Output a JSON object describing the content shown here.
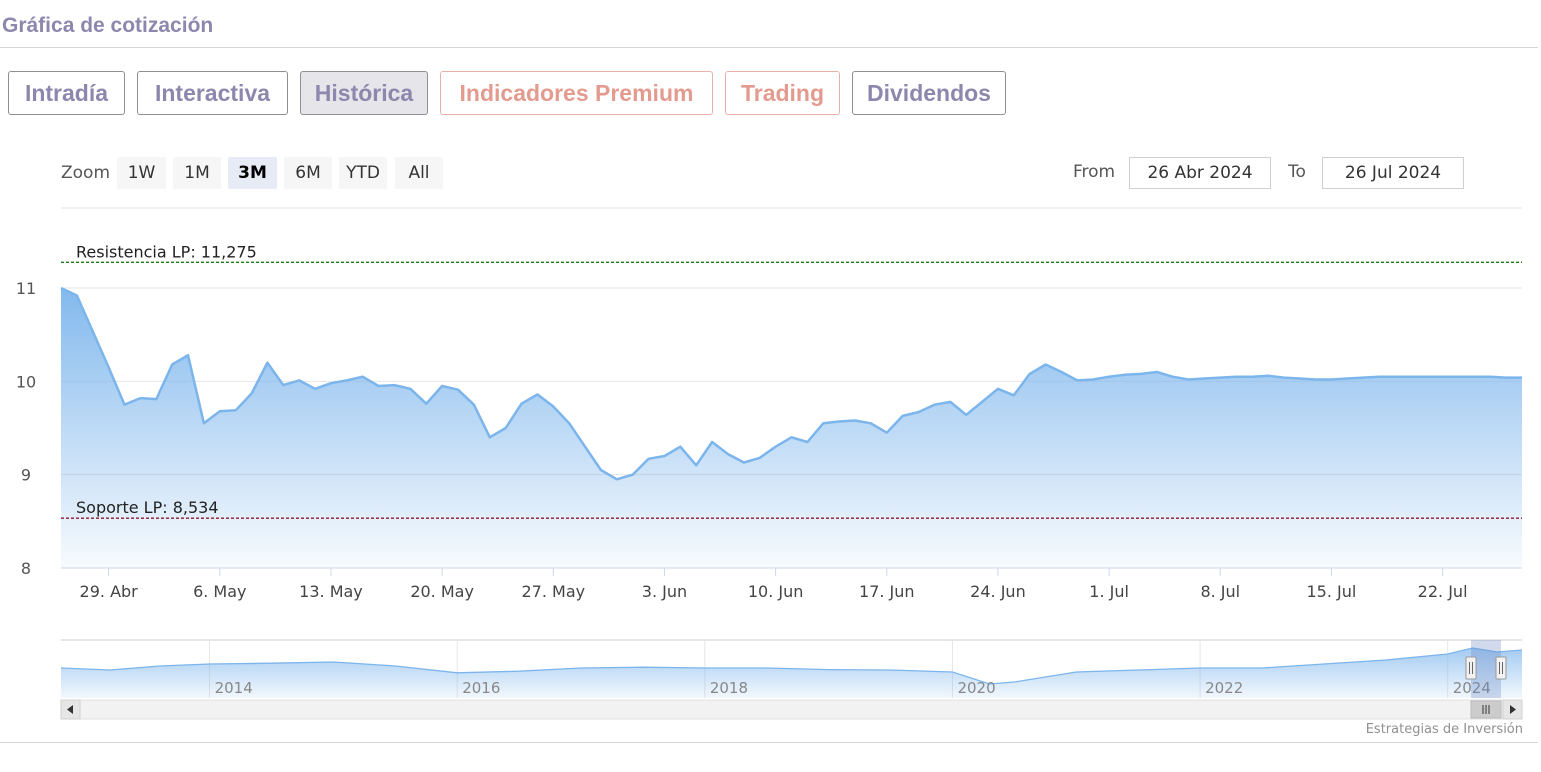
{
  "header": {
    "title": "Gráfica de cotización"
  },
  "tabs": [
    {
      "label": "Intradía",
      "style": "purple",
      "active": false
    },
    {
      "label": "Interactiva",
      "style": "purple",
      "active": false
    },
    {
      "label": "Histórica",
      "style": "purple",
      "active": true
    },
    {
      "label": "Indicadores Premium",
      "style": "salmon",
      "active": false
    },
    {
      "label": "Trading",
      "style": "salmon",
      "active": false
    },
    {
      "label": "Dividendos",
      "style": "purple",
      "active": false
    }
  ],
  "zoom": {
    "label": "Zoom",
    "buttons": [
      "1W",
      "1M",
      "3M",
      "6M",
      "YTD",
      "All"
    ],
    "selected": "3M"
  },
  "range": {
    "from_label": "From",
    "from_value": "26 Abr 2024",
    "to_label": "To",
    "to_value": "26 Jul 2024"
  },
  "credits": "Estrategias de Inversión",
  "colors": {
    "line": "#7cb5ec",
    "resistance": "#1a7a1a",
    "support": "#8b1a2b",
    "title": "#8e87ad",
    "salmon": "#e39a8f"
  },
  "chart_data": {
    "type": "area",
    "ylim": [
      8,
      11.3
    ],
    "yticks": [
      8,
      9,
      10,
      11
    ],
    "xlim_days": [
      0,
      92
    ],
    "xticks": [
      {
        "label": "29. Abr",
        "day": 3
      },
      {
        "label": "6. May",
        "day": 10
      },
      {
        "label": "13. May",
        "day": 17
      },
      {
        "label": "20. May",
        "day": 24
      },
      {
        "label": "27. May",
        "day": 31
      },
      {
        "label": "3. Jun",
        "day": 38
      },
      {
        "label": "10. Jun",
        "day": 45
      },
      {
        "label": "17. Jun",
        "day": 52
      },
      {
        "label": "24. Jun",
        "day": 59
      },
      {
        "label": "1. Jul",
        "day": 66
      },
      {
        "label": "8. Jul",
        "day": 73
      },
      {
        "label": "15. Jul",
        "day": 80
      },
      {
        "label": "22. Jul",
        "day": 87
      }
    ],
    "series": [
      {
        "x": [
          0,
          1,
          3,
          4,
          5,
          6,
          7,
          8,
          9,
          10,
          11,
          12,
          13,
          14,
          15,
          16,
          17,
          18,
          19,
          20,
          21,
          22,
          23,
          24,
          25,
          26,
          27,
          28,
          29,
          30,
          31,
          32,
          33,
          34,
          35,
          36,
          37,
          38,
          39,
          40,
          41,
          42,
          43,
          44,
          45,
          46,
          47,
          48,
          49,
          50,
          51,
          52,
          53,
          54,
          55,
          56,
          57,
          58,
          59,
          60,
          61,
          62,
          63,
          64,
          65,
          66,
          67,
          68,
          69,
          70,
          71,
          72,
          73,
          74,
          75,
          76,
          77,
          78,
          79,
          80,
          81,
          82,
          83,
          84,
          85,
          86,
          87,
          88,
          89,
          90,
          91,
          92
        ],
        "values": [
          11.0,
          10.92,
          10.15,
          9.75,
          9.82,
          9.81,
          10.18,
          10.28,
          9.55,
          9.68,
          9.69,
          9.87,
          10.2,
          9.96,
          10.01,
          9.92,
          9.98,
          10.01,
          10.05,
          9.95,
          9.96,
          9.92,
          9.76,
          9.95,
          9.91,
          9.75,
          9.4,
          9.5,
          9.76,
          9.86,
          9.73,
          9.55,
          9.3,
          9.05,
          8.95,
          9.0,
          9.17,
          9.2,
          9.3,
          9.1,
          9.35,
          9.22,
          9.13,
          9.18,
          9.3,
          9.4,
          9.35,
          9.55,
          9.57,
          9.58,
          9.55,
          9.45,
          9.63,
          9.67,
          9.75,
          9.78,
          9.64,
          9.78,
          9.92,
          9.85,
          10.08,
          10.18,
          10.1,
          10.01,
          10.02,
          10.05,
          10.07,
          10.08,
          10.1,
          10.05,
          10.02,
          10.03,
          10.04,
          10.05,
          10.05,
          10.06,
          10.04,
          10.03,
          10.02,
          10.02,
          10.03,
          10.04,
          10.05,
          10.05,
          10.05,
          10.05,
          10.05,
          10.05,
          10.05,
          10.05,
          10.04,
          10.04
        ]
      }
    ],
    "plotlines": [
      {
        "label": "Resistencia LP: 11,275",
        "value": 11.275,
        "color": "#1a7a1a"
      },
      {
        "label": "Soporte LP: 8,534",
        "value": 8.534,
        "color": "#8b1a2b"
      }
    ],
    "navigator": {
      "years": [
        "2014",
        "2016",
        "2018",
        "2020",
        "2022",
        "2024"
      ],
      "xlim": [
        2012.8,
        2024.6
      ],
      "x": [
        2012.8,
        2013.2,
        2013.6,
        2014.0,
        2014.5,
        2015.0,
        2015.5,
        2016.0,
        2016.5,
        2017.0,
        2017.5,
        2018.0,
        2018.5,
        2019.0,
        2019.5,
        2020.0,
        2020.3,
        2020.5,
        2021.0,
        2021.5,
        2022.0,
        2022.5,
        2023.0,
        2023.5,
        2024.0,
        2024.2,
        2024.4,
        2024.6
      ],
      "values": [
        0.5,
        0.45,
        0.55,
        0.6,
        0.62,
        0.65,
        0.55,
        0.38,
        0.42,
        0.5,
        0.52,
        0.5,
        0.5,
        0.46,
        0.45,
        0.4,
        0.1,
        0.15,
        0.4,
        0.45,
        0.5,
        0.5,
        0.6,
        0.7,
        0.85,
        1.0,
        0.9,
        0.95
      ],
      "grid_years": [
        2014,
        2016,
        2018,
        2020,
        2022,
        2024
      ]
    }
  }
}
